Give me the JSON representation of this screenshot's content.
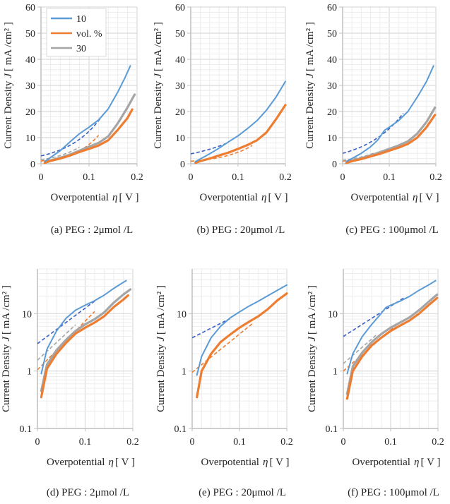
{
  "figure": {
    "colors": {
      "s10": "#5B9BD5",
      "s10_fit": "#3A5FC4",
      "s20": "#ED7D31",
      "s30": "#A5A5A5",
      "grid_major": "#D9D9D9",
      "grid_minor": "#EDEDED",
      "axis": "#BFBFBF"
    },
    "legend": {
      "entries": [
        {
          "label": "10",
          "series": "s10"
        },
        {
          "label": "vol. %",
          "series": "s20"
        },
        {
          "label": "30",
          "series": "s30"
        }
      ]
    }
  },
  "chart_data": [
    {
      "id": "a",
      "type": "line",
      "scale": "linear",
      "caption": "(a) PEG : 2μmol /L",
      "xlabel": "Overpotential",
      "xlabel_symbol": "η",
      "xlabel_unit": "[ V ]",
      "ylabel": "Current Density",
      "ylabel_symbol": "J",
      "ylabel_unit": "[ mA /cm² ]",
      "xlim": [
        0,
        0.2
      ],
      "ylim": [
        0,
        60
      ],
      "xticks": [
        "0",
        "0.1",
        "0.2"
      ],
      "yticks": [
        "0",
        "10",
        "20",
        "30",
        "40",
        "50",
        "60"
      ],
      "grid": true,
      "legend": "top-left",
      "series": [
        {
          "name": "10",
          "key": "s10",
          "x": [
            0.008,
            0.02,
            0.04,
            0.06,
            0.08,
            0.1,
            0.12,
            0.14,
            0.16,
            0.175,
            0.186
          ],
          "y": [
            0.9,
            2.4,
            5.0,
            8.3,
            11.5,
            14.0,
            16.8,
            21.0,
            27.5,
            33.0,
            37.5
          ]
        },
        {
          "name": "vol. %",
          "key": "s20",
          "x": [
            0.008,
            0.02,
            0.04,
            0.06,
            0.08,
            0.1,
            0.12,
            0.14,
            0.16,
            0.18,
            0.19
          ],
          "y": [
            0.35,
            1.1,
            2.0,
            3.1,
            4.5,
            5.7,
            7.0,
            9.0,
            13.0,
            17.5,
            20.8
          ]
        },
        {
          "name": "30",
          "key": "s30",
          "x": [
            0.008,
            0.02,
            0.04,
            0.06,
            0.08,
            0.1,
            0.12,
            0.14,
            0.16,
            0.18,
            0.195
          ],
          "y": [
            0.45,
            1.3,
            2.3,
            3.5,
            5.0,
            6.5,
            8.0,
            10.5,
            15.5,
            21.5,
            26.5
          ]
        }
      ],
      "fits": [
        {
          "key": "s10",
          "x": [
            0,
            0.13
          ],
          "y0": 3.0,
          "slope_per_decade": 0.162
        },
        {
          "key": "s20",
          "x": [
            0,
            0.12
          ],
          "y0": 1.05,
          "slope_per_decade": 0.118
        },
        {
          "key": "s30",
          "x": [
            0,
            0.08
          ],
          "y0": 1.55,
          "slope_per_decade": 0.13
        }
      ]
    },
    {
      "id": "b",
      "type": "line",
      "scale": "linear",
      "caption": "(b) PEG : 20μmol /L",
      "xlabel": "Overpotential",
      "xlabel_symbol": "η",
      "xlabel_unit": "[ V ]",
      "ylabel": "Current Density",
      "ylabel_symbol": "J",
      "ylabel_unit": "[ mA /cm² ]",
      "xlim": [
        0,
        0.2
      ],
      "ylim": [
        0,
        60
      ],
      "xticks": [
        "0",
        "0.1",
        "0.2"
      ],
      "yticks": [
        "0",
        "10",
        "20",
        "30",
        "40",
        "50",
        "60"
      ],
      "grid": true,
      "series": [
        {
          "name": "10",
          "key": "s10",
          "x": [
            0.01,
            0.02,
            0.04,
            0.06,
            0.08,
            0.1,
            0.12,
            0.14,
            0.16,
            0.18,
            0.2
          ],
          "y": [
            0.85,
            1.8,
            3.8,
            6.0,
            8.4,
            10.7,
            13.5,
            16.5,
            20.5,
            25.5,
            31.5
          ]
        },
        {
          "name": "vol. %",
          "key": "s20",
          "x": [
            0.01,
            0.02,
            0.04,
            0.06,
            0.08,
            0.1,
            0.12,
            0.14,
            0.16,
            0.18,
            0.2
          ],
          "y": [
            0.35,
            1.0,
            2.0,
            3.2,
            4.3,
            5.7,
            7.2,
            9.0,
            12.0,
            17.0,
            22.5
          ]
        }
      ],
      "fits": [
        {
          "key": "s10",
          "x": [
            0,
            0.08
          ],
          "y0": 3.8,
          "slope_per_decade": 0.24
        },
        {
          "key": "s20",
          "x": [
            0,
            0.13
          ],
          "y0": 0.95,
          "slope_per_decade": 0.15
        }
      ]
    },
    {
      "id": "c",
      "type": "line",
      "scale": "linear",
      "caption": "(c) PEG : 100μmol /L",
      "xlabel": "Overpotential",
      "xlabel_symbol": "η",
      "xlabel_unit": "[ V ]",
      "ylabel": "Current Density",
      "ylabel_symbol": "J",
      "ylabel_unit": "[ mA /cm² ]",
      "xlim": [
        0,
        0.2
      ],
      "ylim": [
        0,
        60
      ],
      "xticks": [
        "0",
        "0.1",
        "0.2"
      ],
      "yticks": [
        "0",
        "10",
        "20",
        "30",
        "40",
        "50",
        "60"
      ],
      "grid": true,
      "series": [
        {
          "name": "10",
          "key": "s10",
          "x": [
            0.008,
            0.02,
            0.04,
            0.06,
            0.075,
            0.09,
            0.1,
            0.12,
            0.14,
            0.16,
            0.18,
            0.195
          ],
          "y": [
            0.9,
            2.0,
            4.0,
            6.5,
            9.0,
            12.8,
            14.0,
            16.5,
            20.0,
            25.5,
            31.5,
            37.5
          ]
        },
        {
          "name": "vol. %",
          "key": "s20",
          "x": [
            0.008,
            0.02,
            0.04,
            0.06,
            0.08,
            0.1,
            0.12,
            0.14,
            0.16,
            0.18,
            0.198
          ],
          "y": [
            0.33,
            1.0,
            1.8,
            2.8,
            3.8,
            5.0,
            6.2,
            7.6,
            10.0,
            14.0,
            18.7
          ]
        },
        {
          "name": "30",
          "key": "s30",
          "x": [
            0.008,
            0.02,
            0.04,
            0.06,
            0.08,
            0.1,
            0.12,
            0.14,
            0.16,
            0.18,
            0.198
          ],
          "y": [
            0.4,
            1.2,
            2.1,
            3.2,
            4.4,
            5.7,
            7.0,
            8.6,
            11.5,
            16.0,
            21.5
          ]
        }
      ],
      "fits": [
        {
          "key": "s10",
          "x": [
            0,
            0.13
          ],
          "y0": 4.0,
          "slope_per_decade": 0.19
        },
        {
          "key": "s20",
          "x": [
            0,
            0.12
          ],
          "y0": 1.0,
          "slope_per_decade": 0.14
        },
        {
          "key": "s30",
          "x": [
            0,
            0.07
          ],
          "y0": 1.35,
          "slope_per_decade": 0.14
        }
      ]
    },
    {
      "id": "d",
      "type": "line",
      "scale": "log",
      "caption": "(d) PEG : 2μmol /L",
      "xlabel": "Overpotential",
      "xlabel_symbol": "η",
      "xlabel_unit": "[ V ]",
      "ylabel": "Current Density",
      "ylabel_symbol": "J",
      "ylabel_unit": "[ mA /cm² ]",
      "xlim": [
        0,
        0.2
      ],
      "ylim": [
        0.1,
        60
      ],
      "xticks": [
        "0",
        "0.1",
        "0.2"
      ],
      "yticks": [
        "0.1",
        "1",
        "10"
      ],
      "grid": true,
      "series_ref": "a"
    },
    {
      "id": "e",
      "type": "line",
      "scale": "log",
      "caption": "(e) PEG : 20μmol /L",
      "xlabel": "Overpotential",
      "xlabel_symbol": "η",
      "xlabel_unit": "[ V ]",
      "ylabel": "Current Density",
      "ylabel_symbol": "J",
      "ylabel_unit": "[ mA /cm² ]",
      "xlim": [
        0,
        0.2
      ],
      "ylim": [
        0.1,
        60
      ],
      "xticks": [
        "0",
        "0.1",
        "0.2"
      ],
      "yticks": [
        "0.1",
        "1",
        "10"
      ],
      "grid": true,
      "series_ref": "b"
    },
    {
      "id": "f",
      "type": "line",
      "scale": "log",
      "caption": "(f) PEG : 100μmol /L",
      "xlabel": "Overpotential",
      "xlabel_symbol": "η",
      "xlabel_unit": "[ V ]",
      "ylabel": "Current Density",
      "ylabel_symbol": "J",
      "ylabel_unit": "[ mA /cm² ]",
      "xlim": [
        0,
        0.2
      ],
      "ylim": [
        0.1,
        60
      ],
      "xticks": [
        "0",
        "0.1",
        "0.2"
      ],
      "yticks": [
        "0.1",
        "1",
        "10"
      ],
      "grid": true,
      "series_ref": "c"
    }
  ]
}
